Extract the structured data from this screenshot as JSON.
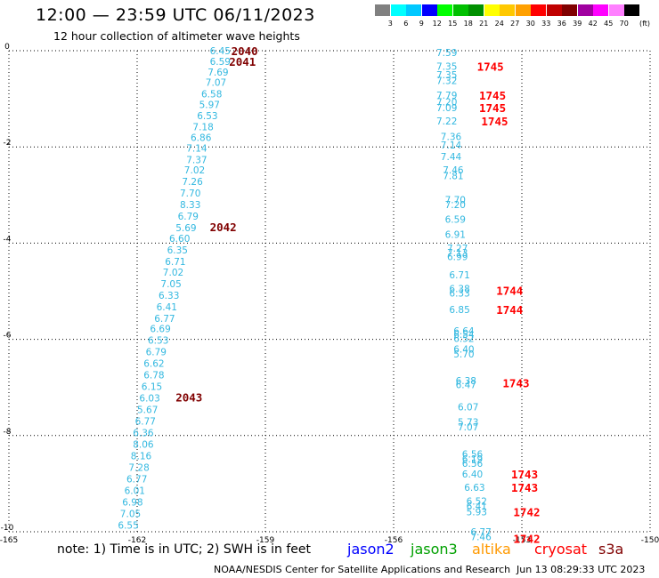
{
  "title": "12:00 — 23:59 UTC 06/11/2023",
  "subtitle": "12 hour collection of altimeter wave heights",
  "note": "note:  1) Time is in UTC; 2) SWH is in feet",
  "satellites": [
    {
      "name": "jason2",
      "color": "#0000ff"
    },
    {
      "name": "jason3",
      "color": "#00a000"
    },
    {
      "name": "altika",
      "color": "#ff9900"
    },
    {
      "name": "cryosat",
      "color": "#ff0000"
    },
    {
      "name": "s3a",
      "color": "#800000"
    }
  ],
  "credit": "NOAA/NESDIS Center for Satellite Applications and Research",
  "timestamp": "Jun 13 08:29:33 UTC 2023",
  "color_scale": {
    "colors": [
      "#808080",
      "#00ffff",
      "#00c8ff",
      "#0000ff",
      "#00ff00",
      "#00c000",
      "#009000",
      "#ffff00",
      "#ffc800",
      "#ffa000",
      "#ff0000",
      "#c00000",
      "#800000",
      "#a000a0",
      "#ff00ff",
      "#ff80ff",
      "#000000"
    ],
    "labels": [
      "3",
      "6",
      "9",
      "12",
      "15",
      "18",
      "21",
      "24",
      "27",
      "30",
      "33",
      "36",
      "39",
      "42",
      "45",
      "70"
    ],
    "unit": "(ft)"
  },
  "chart_data": {
    "type": "scatter",
    "xlim": [
      -165,
      -150
    ],
    "ylim": [
      -10,
      0
    ],
    "x_ticks": [
      "-165",
      "-162",
      "-159",
      "-156",
      "-153",
      "-150"
    ],
    "y_ticks": [
      "0",
      "-2",
      "-4",
      "-6",
      "-8",
      "-10"
    ],
    "grid": true,
    "tracks": [
      {
        "color": "#33b8e0",
        "points": [
          {
            "x": -160.3,
            "y": 0.0,
            "label": "6.45"
          },
          {
            "x": -160.3,
            "y": -0.22,
            "label": "6.59"
          },
          {
            "x": -160.35,
            "y": -0.44,
            "label": "7.69"
          },
          {
            "x": -160.4,
            "y": -0.66,
            "label": "7.07"
          },
          {
            "x": -160.5,
            "y": -0.9,
            "label": "6.58"
          },
          {
            "x": -160.55,
            "y": -1.12,
            "label": "5.97"
          },
          {
            "x": -160.6,
            "y": -1.35,
            "label": "6.53"
          },
          {
            "x": -160.7,
            "y": -1.58,
            "label": "7.18"
          },
          {
            "x": -160.75,
            "y": -1.8,
            "label": "6.86"
          },
          {
            "x": -160.85,
            "y": -2.02,
            "label": "7.14"
          },
          {
            "x": -160.85,
            "y": -2.26,
            "label": "7.37"
          },
          {
            "x": -160.9,
            "y": -2.48,
            "label": "7.02"
          },
          {
            "x": -160.95,
            "y": -2.72,
            "label": "7.26"
          },
          {
            "x": -161.0,
            "y": -2.96,
            "label": "7.70"
          },
          {
            "x": -161.0,
            "y": -3.2,
            "label": "8.33"
          },
          {
            "x": -161.05,
            "y": -3.44,
            "label": "6.79"
          },
          {
            "x": -161.1,
            "y": -3.68,
            "label": "5.69"
          },
          {
            "x": -161.25,
            "y": -3.9,
            "label": "6.60"
          },
          {
            "x": -161.3,
            "y": -4.14,
            "label": "6.35"
          },
          {
            "x": -161.35,
            "y": -4.38,
            "label": "6.71"
          },
          {
            "x": -161.4,
            "y": -4.6,
            "label": "7.02"
          },
          {
            "x": -161.45,
            "y": -4.84,
            "label": "7.05"
          },
          {
            "x": -161.5,
            "y": -5.08,
            "label": "6.33"
          },
          {
            "x": -161.55,
            "y": -5.32,
            "label": "6.41"
          },
          {
            "x": -161.6,
            "y": -5.56,
            "label": "6.77"
          },
          {
            "x": -161.7,
            "y": -5.78,
            "label": "6.69"
          },
          {
            "x": -161.75,
            "y": -6.02,
            "label": "6.53"
          },
          {
            "x": -161.8,
            "y": -6.26,
            "label": "6.79"
          },
          {
            "x": -161.85,
            "y": -6.5,
            "label": "6.62"
          },
          {
            "x": -161.85,
            "y": -6.74,
            "label": "6.78"
          },
          {
            "x": -161.9,
            "y": -6.98,
            "label": "6.15"
          },
          {
            "x": -161.95,
            "y": -7.22,
            "label": "6.03"
          },
          {
            "x": -162.0,
            "y": -7.46,
            "label": "5.67"
          },
          {
            "x": -162.05,
            "y": -7.7,
            "label": "6.77"
          },
          {
            "x": -162.1,
            "y": -7.94,
            "label": "6.36"
          },
          {
            "x": -162.1,
            "y": -8.18,
            "label": "8.06"
          },
          {
            "x": -162.15,
            "y": -8.42,
            "label": "8.16"
          },
          {
            "x": -162.2,
            "y": -8.66,
            "label": "7.28"
          },
          {
            "x": -162.25,
            "y": -8.9,
            "label": "6.77"
          },
          {
            "x": -162.3,
            "y": -9.14,
            "label": "6.01"
          },
          {
            "x": -162.35,
            "y": -9.38,
            "label": "6.98"
          },
          {
            "x": -162.4,
            "y": -9.62,
            "label": "7.05"
          },
          {
            "x": -162.45,
            "y": -9.86,
            "label": "6.55"
          }
        ]
      },
      {
        "color": "#33b8e0",
        "points": [
          {
            "x": -155.0,
            "y": -0.04,
            "label": "7.59"
          },
          {
            "x": -155.0,
            "y": -0.32,
            "label": "7.35"
          },
          {
            "x": -155.0,
            "y": -0.5,
            "label": "7.35"
          },
          {
            "x": -155.0,
            "y": -0.62,
            "label": "7.32"
          },
          {
            "x": -155.0,
            "y": -0.92,
            "label": "7.79"
          },
          {
            "x": -155.0,
            "y": -1.06,
            "label": "7.20"
          },
          {
            "x": -155.0,
            "y": -1.18,
            "label": "7.09"
          },
          {
            "x": -155.0,
            "y": -1.46,
            "label": "7.22"
          },
          {
            "x": -154.9,
            "y": -1.78,
            "label": "7.36"
          },
          {
            "x": -154.9,
            "y": -1.96,
            "label": "7.14"
          },
          {
            "x": -154.9,
            "y": -2.2,
            "label": "7.44"
          },
          {
            "x": -154.85,
            "y": -2.48,
            "label": "7.46"
          },
          {
            "x": -154.85,
            "y": -2.6,
            "label": "7.81"
          },
          {
            "x": -154.8,
            "y": -3.1,
            "label": "7.70"
          },
          {
            "x": -154.8,
            "y": -3.2,
            "label": "7.20"
          },
          {
            "x": -154.8,
            "y": -3.5,
            "label": "6.59"
          },
          {
            "x": -154.8,
            "y": -3.82,
            "label": "6.91"
          },
          {
            "x": -154.75,
            "y": -4.1,
            "label": "7.27"
          },
          {
            "x": -154.75,
            "y": -4.2,
            "label": "7.13"
          },
          {
            "x": -154.75,
            "y": -4.28,
            "label": "6.99"
          },
          {
            "x": -154.7,
            "y": -4.66,
            "label": "6.71"
          },
          {
            "x": -154.7,
            "y": -4.94,
            "label": "6.38"
          },
          {
            "x": -154.7,
            "y": -5.04,
            "label": "6.33"
          },
          {
            "x": -154.7,
            "y": -5.38,
            "label": "6.85"
          },
          {
            "x": -154.6,
            "y": -5.82,
            "label": "6.64"
          },
          {
            "x": -154.6,
            "y": -5.9,
            "label": "6.54"
          },
          {
            "x": -154.6,
            "y": -5.98,
            "label": "6.52"
          },
          {
            "x": -154.6,
            "y": -6.2,
            "label": "6.40"
          },
          {
            "x": -154.6,
            "y": -6.3,
            "label": "5.70"
          },
          {
            "x": -154.55,
            "y": -6.86,
            "label": "6.38"
          },
          {
            "x": -154.55,
            "y": -6.94,
            "label": "6.47"
          },
          {
            "x": -154.5,
            "y": -7.4,
            "label": "6.07"
          },
          {
            "x": -154.5,
            "y": -7.72,
            "label": "5.73"
          },
          {
            "x": -154.5,
            "y": -7.82,
            "label": "7.07"
          },
          {
            "x": -154.4,
            "y": -8.38,
            "label": "6.56"
          },
          {
            "x": -154.4,
            "y": -8.48,
            "label": "6.19"
          },
          {
            "x": -154.4,
            "y": -8.58,
            "label": "6.56"
          },
          {
            "x": -154.4,
            "y": -8.8,
            "label": "6.40"
          },
          {
            "x": -154.35,
            "y": -9.08,
            "label": "6.63"
          },
          {
            "x": -154.3,
            "y": -9.36,
            "label": "6.52"
          },
          {
            "x": -154.3,
            "y": -9.46,
            "label": "6.41"
          },
          {
            "x": -154.3,
            "y": -9.58,
            "label": "5.93"
          },
          {
            "x": -154.2,
            "y": -10.0,
            "label": "6.77"
          },
          {
            "x": -154.2,
            "y": -10.1,
            "label": "7.46"
          }
        ]
      }
    ],
    "time_labels": [
      {
        "x": -159.8,
        "y": 0.0,
        "label": "2040",
        "color": "#800000"
      },
      {
        "x": -159.85,
        "y": -0.22,
        "label": "2041",
        "color": "#800000"
      },
      {
        "x": -160.3,
        "y": -3.66,
        "label": "2042",
        "color": "#800000"
      },
      {
        "x": -161.1,
        "y": -7.2,
        "label": "2043",
        "color": "#800000"
      },
      {
        "x": -154.05,
        "y": -0.32,
        "label": "1745",
        "color": "#ff0000"
      },
      {
        "x": -154.0,
        "y": -0.92,
        "label": "1745",
        "color": "#ff0000"
      },
      {
        "x": -154.0,
        "y": -1.18,
        "label": "1745",
        "color": "#ff0000"
      },
      {
        "x": -153.95,
        "y": -1.46,
        "label": "1745",
        "color": "#ff0000"
      },
      {
        "x": -153.6,
        "y": -4.98,
        "label": "1744",
        "color": "#ff0000"
      },
      {
        "x": -153.6,
        "y": -5.38,
        "label": "1744",
        "color": "#ff0000"
      },
      {
        "x": -153.45,
        "y": -6.9,
        "label": "1743",
        "color": "#ff0000"
      },
      {
        "x": -153.25,
        "y": -8.8,
        "label": "1743",
        "color": "#ff0000"
      },
      {
        "x": -153.25,
        "y": -9.08,
        "label": "1743",
        "color": "#ff0000"
      },
      {
        "x": -153.2,
        "y": -9.58,
        "label": "1742",
        "color": "#ff0000"
      },
      {
        "x": -153.2,
        "y": -10.14,
        "label": "1742",
        "color": "#ff0000"
      }
    ]
  }
}
